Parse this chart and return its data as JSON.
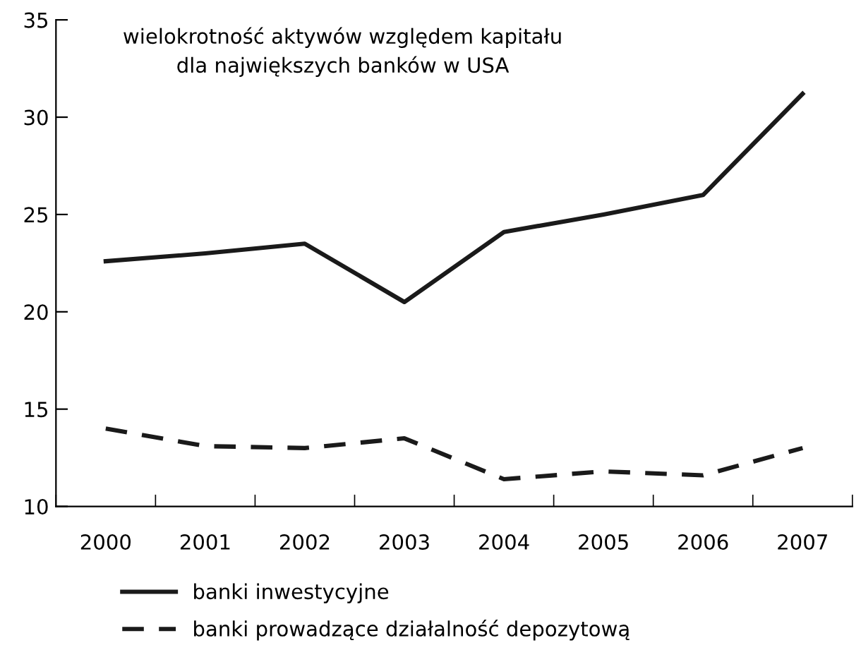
{
  "chart_data": {
    "type": "line",
    "title": "wielokrotność aktywów względem kapitału\ndla największych banków w USA",
    "categories": [
      "2000",
      "2001",
      "2002",
      "2003",
      "2004",
      "2005",
      "2006",
      "2007"
    ],
    "series": [
      {
        "name": "banki inwestycyjne",
        "color": "#1a1a1a",
        "line_style": "solid",
        "values": [
          22.6,
          23.0,
          23.5,
          20.5,
          24.1,
          25.0,
          26.0,
          31.2
        ]
      },
      {
        "name": "banki prowadzące działalność depozytową",
        "color": "#1a1a1a",
        "line_style": "dashed",
        "values": [
          14.0,
          13.1,
          13.0,
          13.5,
          11.4,
          11.8,
          11.6,
          13.0
        ]
      }
    ],
    "ylim": [
      10,
      35
    ],
    "yticks": [
      10,
      15,
      20,
      25,
      30,
      35
    ],
    "grid": false,
    "legend": "bottom"
  }
}
